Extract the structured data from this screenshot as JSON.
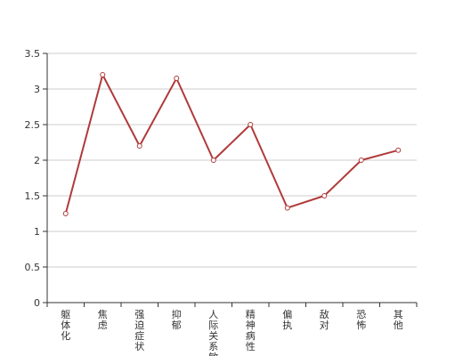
{
  "chart_data": {
    "type": "line",
    "categories": [
      "躯体化",
      "焦虑",
      "强迫症状",
      "抑郁",
      "人际关系敏感",
      "精神病性",
      "偏执",
      "敌对",
      "恐怖",
      "其他"
    ],
    "values": [
      1.25,
      3.2,
      2.2,
      3.15,
      2.0,
      2.5,
      1.33,
      1.5,
      2.0,
      2.14
    ],
    "y_ticks": [
      "0",
      "0.5",
      "1",
      "1.5",
      "2",
      "2.5",
      "3",
      "3.5"
    ],
    "ylim": [
      0,
      3.5
    ],
    "grid": true,
    "line_color": "#b03a3a",
    "grid_color": "#cccccc",
    "axis_color": "#333333"
  }
}
